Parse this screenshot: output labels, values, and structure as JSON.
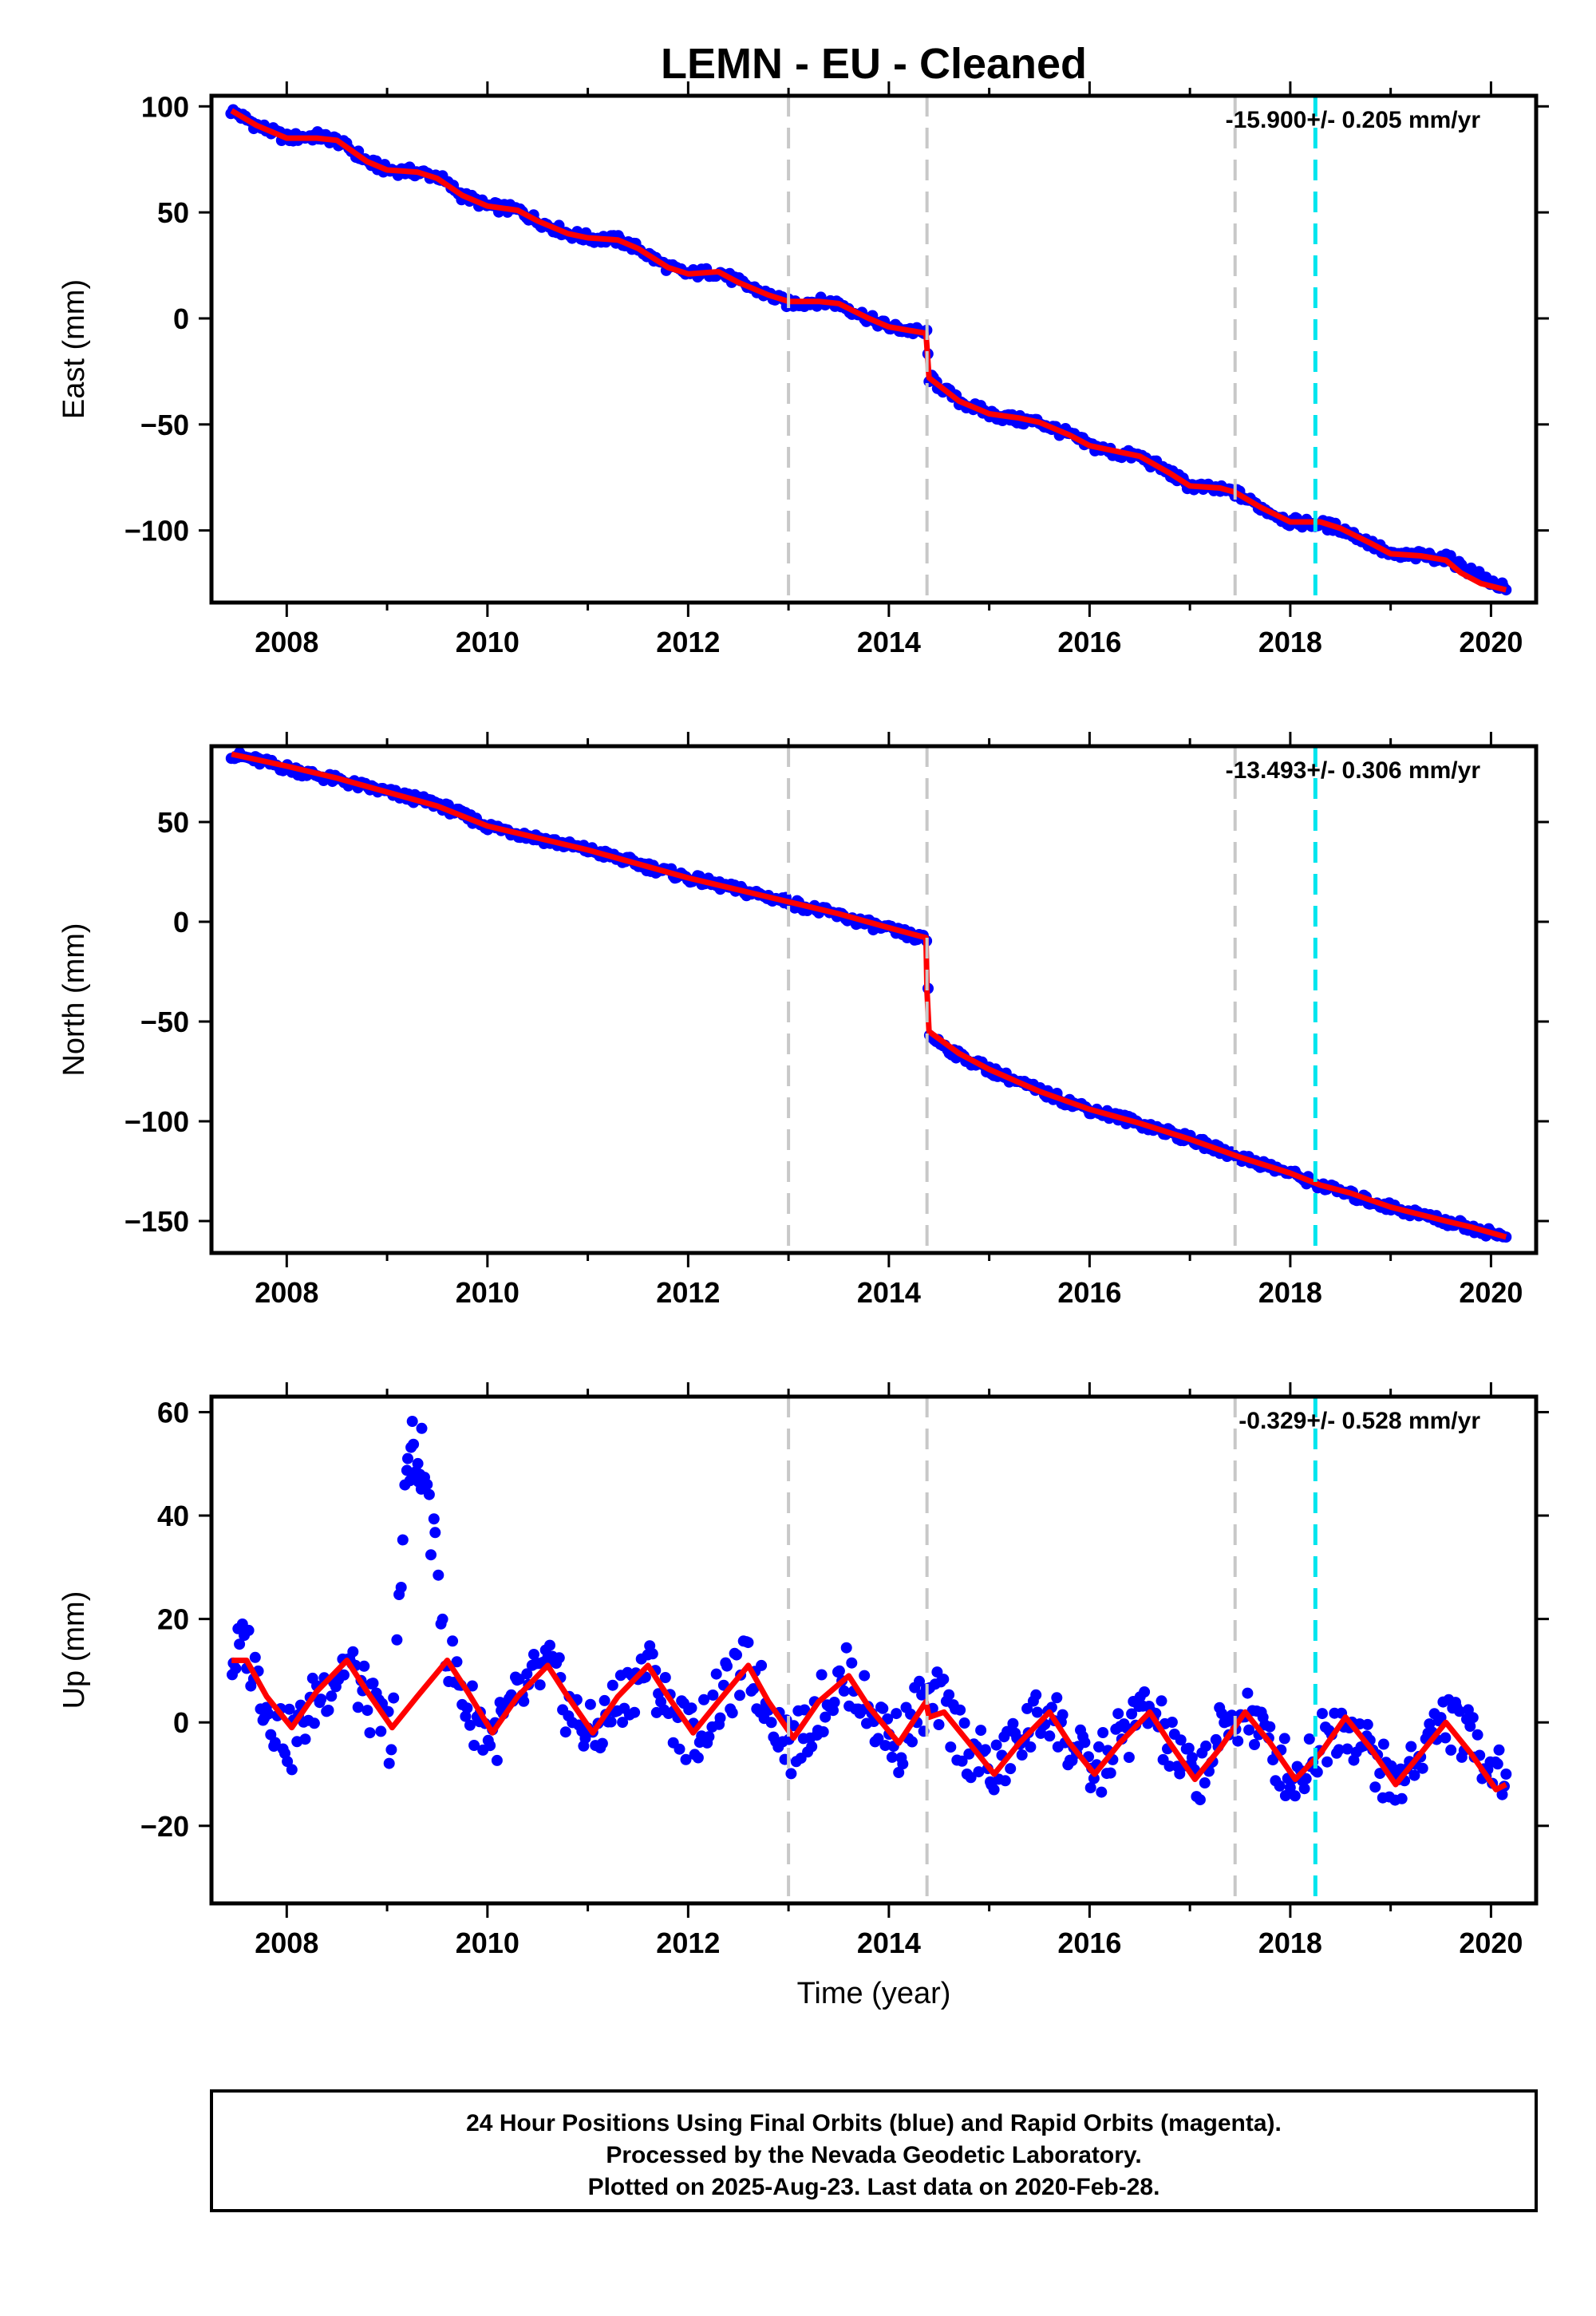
{
  "figure": {
    "title": "LEMN  - EU - Cleaned",
    "footer": {
      "line1": "24 Hour Positions Using Final Orbits (blue) and Rapid Orbits (magenta).",
      "line2": "Processed by the Nevada Geodetic Laboratory.",
      "line3": "Plotted on 2025-Aug-23. Last data on 2020-Feb-28."
    }
  },
  "chart_data": [
    {
      "type": "scatter",
      "id": "east",
      "ylabel": "East (mm)",
      "xlabel": "",
      "rate_text": "-15.900+/- 0.205 mm/yr",
      "xlim": [
        2007.25,
        2020.45
      ],
      "ylim": [
        -134,
        105
      ],
      "xticks": [
        2008,
        2010,
        2012,
        2014,
        2016,
        2018,
        2020
      ],
      "yticks": [
        100,
        50,
        0,
        -50,
        -100
      ],
      "ytick_labels": [
        "100",
        "50",
        "0",
        "−50",
        "−100"
      ],
      "grey_dashed_x": [
        2013.0,
        2014.38,
        2017.45
      ],
      "cyan_dashed_x": [
        2018.25
      ],
      "colors": {
        "points": "#0000ff",
        "model": "#ff0000",
        "grey": "#c8c8c8",
        "cyan": "#00e5ee"
      },
      "observations": {
        "x": [
          2007.45,
          2007.7,
          2008.0,
          2008.3,
          2008.5,
          2008.8,
          2009.0,
          2009.3,
          2009.5,
          2009.75,
          2010.0,
          2010.3,
          2010.5,
          2010.8,
          2011.0,
          2011.3,
          2011.5,
          2011.8,
          2012.0,
          2012.3,
          2012.5,
          2012.8,
          2013.0,
          2013.3,
          2013.5,
          2013.8,
          2014.0,
          2014.37,
          2014.4,
          2014.7,
          2015.0,
          2015.3,
          2015.5,
          2015.8,
          2016.0,
          2016.3,
          2016.5,
          2016.8,
          2017.0,
          2017.3,
          2017.45,
          2017.7,
          2018.0,
          2018.3,
          2018.5,
          2018.8,
          2019.0,
          2019.3,
          2019.55,
          2020.15
        ],
        "y": [
          98,
          91,
          85,
          86,
          84,
          74,
          70,
          69,
          67,
          58,
          53,
          51,
          46,
          40,
          38,
          37,
          33,
          24,
          21,
          22,
          17,
          11,
          7,
          8,
          7,
          0,
          -4,
          -7,
          -28,
          -39,
          -45,
          -48,
          -49,
          -55,
          -60,
          -64,
          -65,
          -73,
          -79,
          -81,
          -82,
          -89,
          -96,
          -97,
          -99,
          -106,
          -112,
          -112,
          -113,
          -128
        ]
      },
      "model": {
        "x": [
          2007.45,
          2007.7,
          2008.0,
          2008.3,
          2008.5,
          2008.8,
          2009.0,
          2009.3,
          2009.5,
          2009.75,
          2010.0,
          2010.3,
          2010.5,
          2010.8,
          2011.0,
          2011.3,
          2011.5,
          2011.8,
          2012.0,
          2012.3,
          2012.5,
          2012.8,
          2013.0,
          2013.3,
          2013.5,
          2013.8,
          2014.0,
          2014.37,
          2014.4,
          2014.7,
          2015.0,
          2015.3,
          2015.5,
          2015.8,
          2016.0,
          2016.3,
          2016.5,
          2016.8,
          2017.0,
          2017.3,
          2017.45,
          2017.7,
          2018.0,
          2018.3,
          2018.5,
          2018.8,
          2019.0,
          2019.3,
          2019.55,
          2019.7,
          2019.9,
          2020.15
        ],
        "y": [
          98,
          91,
          85,
          85,
          84,
          74,
          70,
          69,
          66,
          58,
          53,
          51,
          46,
          40,
          38,
          37,
          33,
          24,
          21,
          22,
          17,
          11,
          8,
          8,
          7,
          0,
          -4,
          -7,
          -28,
          -39,
          -45,
          -47,
          -49,
          -55,
          -60,
          -63,
          -65,
          -73,
          -79,
          -80,
          -82,
          -89,
          -96,
          -96,
          -99,
          -106,
          -111,
          -112,
          -114,
          -120,
          -125,
          -128
        ]
      }
    },
    {
      "type": "scatter",
      "id": "north",
      "ylabel": "North (mm)",
      "xlabel": "",
      "rate_text": "-13.493+/- 0.306 mm/yr",
      "xlim": [
        2007.25,
        2020.45
      ],
      "ylim": [
        -166,
        88
      ],
      "xticks": [
        2008,
        2010,
        2012,
        2014,
        2016,
        2018,
        2020
      ],
      "yticks": [
        50,
        0,
        -50,
        -100,
        -150
      ],
      "ytick_labels": [
        "50",
        "0",
        "−50",
        "−100",
        "−150"
      ],
      "grey_dashed_x": [
        2013.0,
        2014.38,
        2017.45
      ],
      "cyan_dashed_x": [
        2018.25
      ],
      "colors": {
        "points": "#0000ff",
        "model": "#ff0000",
        "grey": "#c8c8c8",
        "cyan": "#00e5ee"
      },
      "observations": {
        "x": [
          2007.45,
          2008.0,
          2008.5,
          2009.0,
          2009.5,
          2010.0,
          2010.5,
          2011.0,
          2011.5,
          2012.0,
          2012.5,
          2013.0,
          2013.5,
          2014.0,
          2014.37,
          2014.4,
          2014.7,
          2015.0,
          2015.5,
          2016.0,
          2016.5,
          2017.0,
          2017.5,
          2018.0,
          2018.3,
          2018.6,
          2019.0,
          2019.55,
          2020.15
        ],
        "y": [
          84,
          77,
          71,
          65,
          59,
          48,
          42,
          36,
          29,
          22,
          16,
          10,
          3,
          -4,
          -9,
          -57,
          -67,
          -74,
          -85,
          -94,
          -101,
          -109,
          -118,
          -126,
          -132,
          -137,
          -143,
          -150,
          -158
        ]
      },
      "model": {
        "x": [
          2007.45,
          2008.0,
          2008.5,
          2009.0,
          2009.5,
          2010.0,
          2010.5,
          2011.0,
          2011.5,
          2012.0,
          2012.5,
          2013.0,
          2013.5,
          2014.0,
          2014.37,
          2014.38,
          2014.4,
          2014.7,
          2015.0,
          2015.5,
          2016.0,
          2016.5,
          2017.0,
          2017.5,
          2018.0,
          2018.3,
          2018.6,
          2019.0,
          2019.55,
          2019.8,
          2020.15
        ],
        "y": [
          84,
          78,
          72,
          65,
          58,
          48,
          42,
          36,
          29,
          22,
          16,
          10,
          4,
          -3,
          -8,
          -35,
          -55,
          -66,
          -74,
          -85,
          -94,
          -101,
          -109,
          -118,
          -126,
          -132,
          -136,
          -143,
          -150,
          -153,
          -158
        ]
      }
    },
    {
      "type": "scatter",
      "id": "up",
      "ylabel": "Up (mm)",
      "xlabel": "Time (year)",
      "rate_text": "-0.329+/- 0.528 mm/yr",
      "xlim": [
        2007.25,
        2020.45
      ],
      "ylim": [
        -35,
        63
      ],
      "xticks": [
        2008,
        2010,
        2012,
        2014,
        2016,
        2018,
        2020
      ],
      "yticks": [
        60,
        40,
        20,
        0,
        -20
      ],
      "ytick_labels": [
        "60",
        "40",
        "20",
        "0",
        "−20"
      ],
      "grey_dashed_x": [
        2013.0,
        2014.38,
        2017.45
      ],
      "cyan_dashed_x": [
        2018.25
      ],
      "colors": {
        "points": "#0000ff",
        "model": "#ff0000",
        "grey": "#c8c8c8",
        "cyan": "#00e5ee"
      },
      "observations": {
        "x": [
          2007.45,
          2007.6,
          2007.8,
          2008.05,
          2008.3,
          2008.6,
          2008.8,
          2009.05,
          2009.2,
          2009.25,
          2009.3,
          2009.35,
          2009.6,
          2009.8,
          2010.05,
          2010.3,
          2010.6,
          2010.8,
          2011.05,
          2011.3,
          2011.6,
          2011.8,
          2012.05,
          2012.3,
          2012.6,
          2012.8,
          2013.05,
          2013.3,
          2013.6,
          2013.8,
          2014.1,
          2014.3,
          2014.5,
          2014.8,
          2015.05,
          2015.3,
          2015.6,
          2015.8,
          2016.05,
          2016.3,
          2016.6,
          2016.8,
          2017.05,
          2017.3,
          2017.55,
          2017.8,
          2018.05,
          2018.3,
          2018.55,
          2018.8,
          2019.05,
          2019.3,
          2019.55,
          2020.15
        ],
        "y": [
          12,
          15,
          3,
          -4,
          5,
          12,
          4,
          -3,
          50,
          55,
          45,
          52,
          13,
          3,
          -3,
          4,
          11,
          3,
          -3,
          4,
          11,
          3,
          -3,
          4,
          11,
          3,
          -5,
          3,
          9,
          2,
          -4,
          3,
          4,
          -5,
          -10,
          -3,
          3,
          -5,
          -10,
          -3,
          3,
          -5,
          -11,
          -3,
          3,
          -5,
          -11,
          -4,
          1,
          -6,
          -13,
          -5,
          1,
          -10
        ]
      },
      "model": {
        "x": [
          2007.45,
          2007.6,
          2007.8,
          2008.05,
          2008.3,
          2008.6,
          2008.8,
          2009.05,
          2009.3,
          2009.6,
          2009.8,
          2010.05,
          2010.3,
          2010.6,
          2010.8,
          2011.05,
          2011.3,
          2011.6,
          2011.8,
          2012.05,
          2012.3,
          2012.6,
          2012.8,
          2013.05,
          2013.3,
          2013.6,
          2013.8,
          2014.1,
          2014.37,
          2014.4,
          2014.55,
          2014.8,
          2015.05,
          2015.3,
          2015.6,
          2015.8,
          2016.05,
          2016.3,
          2016.6,
          2016.8,
          2017.05,
          2017.3,
          2017.55,
          2017.8,
          2018.05,
          2018.3,
          2018.55,
          2018.8,
          2019.05,
          2019.3,
          2019.55,
          2019.8,
          2020.05,
          2020.15
        ],
        "y": [
          12,
          12,
          5,
          -1,
          6,
          12,
          6,
          -1,
          5,
          12,
          6,
          -2,
          5,
          11,
          5,
          -2,
          5,
          11,
          5,
          -2,
          4,
          11,
          4,
          -3,
          4,
          9,
          3,
          -4,
          4,
          1,
          2,
          -4,
          -10,
          -4,
          2,
          -4,
          -10,
          -4,
          2,
          -4,
          -11,
          -5,
          2,
          -4,
          -11,
          -6,
          1,
          -5,
          -12,
          -6,
          0,
          -6,
          -13,
          -12
        ]
      }
    }
  ]
}
